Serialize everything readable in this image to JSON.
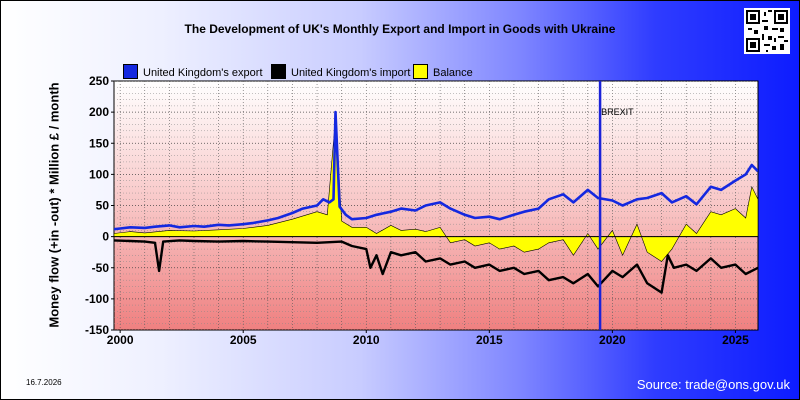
{
  "footer": {
    "date": "16.7.2026",
    "source": "Source: trade@ons.gov.uk"
  },
  "colors": {
    "export": "#1428e0",
    "import": "#000000",
    "balance": "#ffff00",
    "brexit_line": "#1a22d8"
  },
  "chart_data": {
    "type": "line",
    "title": "The Development of UK's Monthly Export and Import in Goods with Ukraine",
    "ylabel": "Money flow (+in -out) * Million £ / month",
    "xlabel": "",
    "ylim": [
      -150,
      250
    ],
    "yticks": [
      -150,
      -100,
      -50,
      0,
      50,
      100,
      150,
      200,
      250
    ],
    "xticks": [
      "2000",
      "2005",
      "2010",
      "2015",
      "2020",
      "2025"
    ],
    "xlim": [
      "1999-10",
      "2025-12"
    ],
    "grid": true,
    "legend_position": "top-left",
    "annotations": [
      {
        "text": "BREXIT",
        "x": "2019-07"
      }
    ],
    "series": [
      {
        "name": "United Kingdom's export",
        "type": "line",
        "x": [
          "1999-10",
          "2000-01",
          "2000-06",
          "2001-01",
          "2001-06",
          "2002-01",
          "2002-06",
          "2003-01",
          "2003-06",
          "2004-01",
          "2004-06",
          "2005-01",
          "2005-06",
          "2006-01",
          "2006-06",
          "2007-01",
          "2007-06",
          "2008-01",
          "2008-04",
          "2008-07",
          "2008-09",
          "2008-10",
          "2008-12",
          "2009-03",
          "2009-06",
          "2010-01",
          "2010-06",
          "2011-01",
          "2011-06",
          "2012-01",
          "2012-06",
          "2013-01",
          "2013-06",
          "2014-01",
          "2014-06",
          "2015-01",
          "2015-06",
          "2016-01",
          "2016-06",
          "2017-01",
          "2017-06",
          "2018-01",
          "2018-06",
          "2019-01",
          "2019-06",
          "2020-01",
          "2020-06",
          "2021-01",
          "2021-06",
          "2022-01",
          "2022-06",
          "2023-01",
          "2023-06",
          "2024-01",
          "2024-06",
          "2025-01",
          "2025-06",
          "2025-09",
          "2025-12"
        ],
        "values": [
          12,
          13,
          15,
          14,
          16,
          18,
          15,
          17,
          16,
          19,
          18,
          20,
          22,
          26,
          30,
          38,
          45,
          50,
          60,
          55,
          60,
          200,
          48,
          35,
          28,
          30,
          35,
          40,
          45,
          42,
          50,
          55,
          45,
          35,
          30,
          32,
          28,
          35,
          40,
          45,
          60,
          68,
          55,
          75,
          62,
          58,
          50,
          60,
          62,
          70,
          55,
          65,
          52,
          80,
          75,
          90,
          100,
          115,
          105
        ]
      },
      {
        "name": "United Kingdom's import",
        "type": "line",
        "x": [
          "1999-10",
          "2000-06",
          "2001-01",
          "2001-06",
          "2001-08",
          "2001-10",
          "2002-06",
          "2003-01",
          "2004-01",
          "2005-01",
          "2006-01",
          "2007-01",
          "2008-01",
          "2009-01",
          "2009-06",
          "2010-01",
          "2010-03",
          "2010-06",
          "2010-09",
          "2011-01",
          "2011-06",
          "2012-01",
          "2012-06",
          "2013-01",
          "2013-06",
          "2014-01",
          "2014-06",
          "2015-01",
          "2015-06",
          "2016-01",
          "2016-06",
          "2017-01",
          "2017-06",
          "2018-01",
          "2018-06",
          "2019-01",
          "2019-06",
          "2020-01",
          "2020-06",
          "2021-01",
          "2021-06",
          "2022-01",
          "2022-04",
          "2022-07",
          "2023-01",
          "2023-06",
          "2024-01",
          "2024-06",
          "2025-01",
          "2025-06",
          "2025-12"
        ],
        "values": [
          -6,
          -7,
          -8,
          -10,
          -55,
          -8,
          -6,
          -7,
          -8,
          -7,
          -8,
          -9,
          -10,
          -8,
          -15,
          -20,
          -50,
          -30,
          -60,
          -25,
          -30,
          -25,
          -40,
          -35,
          -45,
          -40,
          -50,
          -45,
          -55,
          -50,
          -60,
          -55,
          -70,
          -65,
          -75,
          -60,
          -80,
          -55,
          -65,
          -45,
          -75,
          -90,
          -30,
          -50,
          -45,
          -55,
          -35,
          -50,
          -45,
          -60,
          -50
        ]
      },
      {
        "name": "Balance",
        "type": "area",
        "x": [
          "1999-10",
          "2000-06",
          "2001-01",
          "2002-01",
          "2003-01",
          "2004-01",
          "2005-01",
          "2006-01",
          "2007-01",
          "2008-01",
          "2008-06",
          "2008-10",
          "2009-01",
          "2009-06",
          "2010-01",
          "2010-06",
          "2011-01",
          "2011-06",
          "2012-01",
          "2012-06",
          "2013-01",
          "2013-06",
          "2014-01",
          "2014-06",
          "2015-01",
          "2015-06",
          "2016-01",
          "2016-06",
          "2017-01",
          "2017-06",
          "2018-01",
          "2018-06",
          "2019-01",
          "2019-06",
          "2020-01",
          "2020-06",
          "2021-01",
          "2021-06",
          "2022-01",
          "2022-06",
          "2023-01",
          "2023-06",
          "2024-01",
          "2024-06",
          "2025-01",
          "2025-06",
          "2025-09",
          "2025-12"
        ],
        "values": [
          5,
          8,
          6,
          10,
          9,
          11,
          13,
          18,
          28,
          40,
          35,
          190,
          25,
          15,
          15,
          5,
          18,
          10,
          12,
          8,
          15,
          -10,
          -5,
          -15,
          -10,
          -20,
          -15,
          -25,
          -20,
          -10,
          -5,
          -30,
          5,
          -20,
          10,
          -30,
          20,
          -25,
          -40,
          -20,
          20,
          5,
          40,
          35,
          45,
          30,
          80,
          60
        ]
      }
    ]
  }
}
